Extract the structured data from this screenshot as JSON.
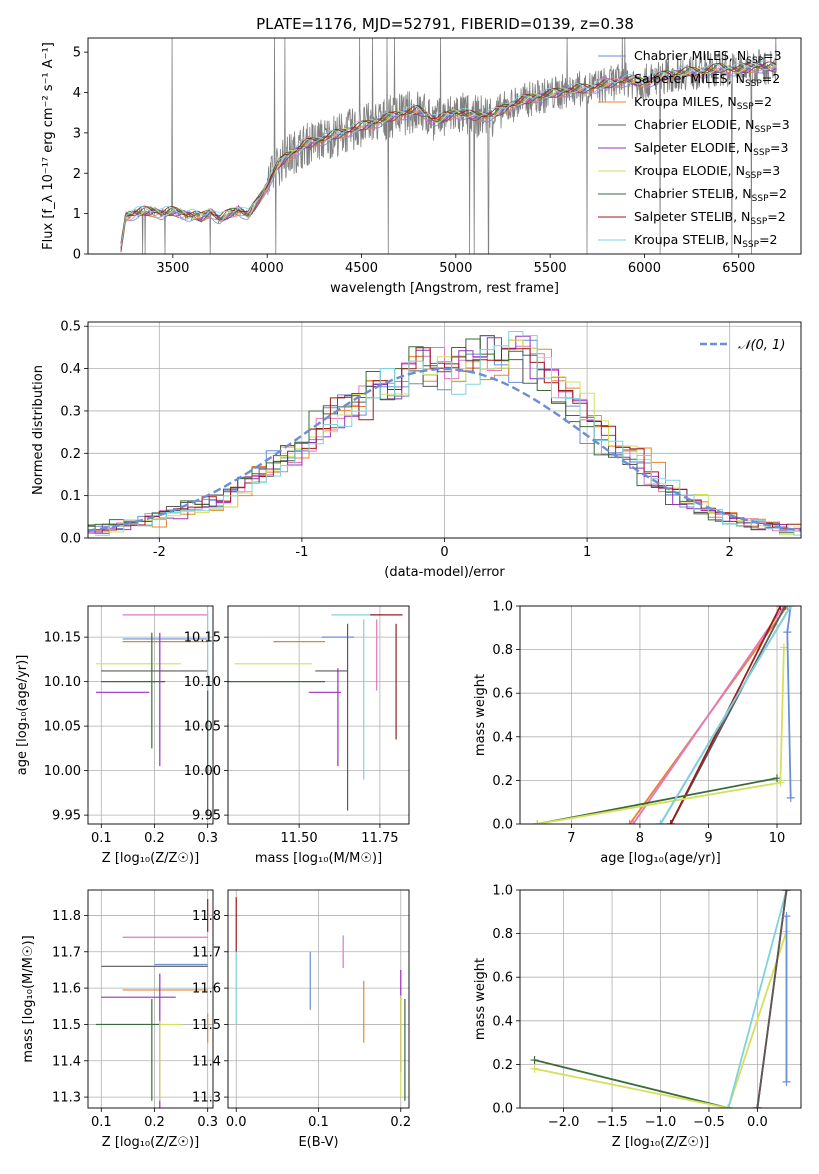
{
  "figure": {
    "title": "PLATE=1176, MJD=52791, FIBERID=0139, z=0.38"
  },
  "series_colors": {
    "Chabrier MILES": "#6a8fd6",
    "Salpeter MILES": "#e377c2",
    "Kroupa MILES": "#e8852c",
    "Chabrier ELODIE": "#5a5a5a",
    "Salpeter ELODIE": "#9b30c0",
    "Kroupa ELODIE": "#d4e05a",
    "Chabrier STELIB": "#3b6b3b",
    "Salpeter STELIB": "#9c1c1c",
    "Kroupa STELIB": "#7fd3dc",
    "data": "#808080",
    "normal": "#6a8fd6"
  },
  "chart_data": [
    {
      "id": "spectrum",
      "type": "line",
      "xlabel": "wavelength [Angstrom, rest frame]",
      "ylabel": "Flux [f_λ 10⁻¹⁷ erg cm⁻² s⁻¹ A⁻¹]",
      "xlim": [
        3050,
        6830
      ],
      "ylim": [
        0,
        5.35
      ],
      "xticks": [
        3500,
        4000,
        4500,
        5000,
        5500,
        6000,
        6500
      ],
      "yticks": [
        0,
        1,
        2,
        3,
        4,
        5
      ],
      "grid": false,
      "legend_position": "top-right",
      "legend": [
        {
          "name": "Chabrier MILES",
          "nssp": "3"
        },
        {
          "name": "Salpeter MILES",
          "nssp": "2"
        },
        {
          "name": "Kroupa MILES",
          "nssp": "2"
        },
        {
          "name": "Chabrier ELODIE",
          "nssp": "3"
        },
        {
          "name": "Salpeter ELODIE",
          "nssp": "3"
        },
        {
          "name": "Kroupa ELODIE",
          "nssp": "3"
        },
        {
          "name": "Chabrier STELIB",
          "nssp": "2"
        },
        {
          "name": "Salpeter STELIB",
          "nssp": "2"
        },
        {
          "name": "Kroupa STELIB",
          "nssp": "2"
        }
      ],
      "continuum": {
        "x": [
          3220,
          3250,
          3300,
          3350,
          3400,
          3450,
          3500,
          3550,
          3600,
          3650,
          3700,
          3750,
          3800,
          3850,
          3900,
          3950,
          4000,
          4050,
          4100,
          4200,
          4300,
          4400,
          4500,
          4600,
          4700,
          4800,
          4900,
          5000,
          5100,
          5200,
          5300,
          5400,
          5500,
          5600,
          5700,
          5800,
          5900,
          6000,
          6100,
          6200,
          6300,
          6400,
          6500,
          6600,
          6700
        ],
        "y": [
          0,
          0.95,
          1.0,
          1.05,
          1.05,
          1.0,
          1.05,
          1.0,
          0.95,
          0.9,
          1.05,
          0.85,
          1.0,
          1.1,
          0.95,
          1.3,
          1.7,
          2.15,
          2.4,
          2.7,
          2.85,
          3.0,
          3.15,
          3.3,
          3.45,
          3.55,
          3.3,
          3.5,
          3.4,
          3.45,
          3.7,
          3.85,
          3.95,
          4.05,
          4.1,
          4.2,
          4.3,
          4.25,
          4.4,
          4.5,
          4.5,
          4.6,
          4.55,
          4.65,
          4.6
        ]
      }
    },
    {
      "id": "residuals",
      "type": "histogram",
      "xlabel": "(data-model)/error",
      "ylabel": "Normed distribution",
      "xlim": [
        -2.5,
        2.5
      ],
      "ylim": [
        0,
        0.51
      ],
      "xticks": [
        -2,
        -1,
        0,
        1,
        2
      ],
      "yticks": [
        0.0,
        0.1,
        0.2,
        0.3,
        0.4,
        0.5
      ],
      "grid": true,
      "legend_position": "top-right",
      "legend_label": "𝒩(0, 1)",
      "bin_edges": [
        -2.5,
        -2.4,
        -2.3,
        -2.2,
        -2.1,
        -2.0,
        -1.9,
        -1.8,
        -1.7,
        -1.6,
        -1.5,
        -1.4,
        -1.3,
        -1.2,
        -1.1,
        -1.0,
        -0.9,
        -0.8,
        -0.7,
        -0.6,
        -0.5,
        -0.4,
        -0.3,
        -0.2,
        -0.1,
        0.0,
        0.1,
        0.2,
        0.3,
        0.4,
        0.5,
        0.6,
        0.7,
        0.8,
        0.9,
        1.0,
        1.1,
        1.2,
        1.3,
        1.4,
        1.5,
        1.6,
        1.7,
        1.8,
        1.9,
        2.0,
        2.1,
        2.2,
        2.3,
        2.4,
        2.5
      ],
      "base_counts": [
        0.02,
        0.025,
        0.03,
        0.035,
        0.04,
        0.05,
        0.06,
        0.075,
        0.08,
        0.09,
        0.11,
        0.14,
        0.15,
        0.18,
        0.2,
        0.24,
        0.27,
        0.29,
        0.32,
        0.33,
        0.37,
        0.35,
        0.39,
        0.4,
        0.41,
        0.38,
        0.4,
        0.42,
        0.44,
        0.45,
        0.42,
        0.41,
        0.37,
        0.34,
        0.3,
        0.26,
        0.24,
        0.2,
        0.18,
        0.15,
        0.12,
        0.1,
        0.08,
        0.06,
        0.05,
        0.04,
        0.035,
        0.03,
        0.025,
        0.02
      ]
    },
    {
      "id": "age-vs-z",
      "type": "errorbar",
      "xlabel": "Z [log₁₀(Z/Z☉)]",
      "ylabel": "age  [log₁₀(age/yr)]",
      "xlim": [
        0.075,
        0.31
      ],
      "ylim": [
        9.94,
        10.185
      ],
      "xticks": [
        0.1,
        0.2,
        0.3
      ],
      "yticks": [
        9.95,
        10.0,
        10.05,
        10.1,
        10.15
      ],
      "grid": true,
      "points": [
        {
          "series": "Salpeter MILES",
          "x": 0.22,
          "xerr": 0.08,
          "y": 10.175,
          "yerr": 0.0
        },
        {
          "series": "Chabrier MILES",
          "x": 0.22,
          "xerr": 0.08,
          "y": 10.148,
          "yerr": 0.0
        },
        {
          "series": "Kroupa MILES",
          "x": 0.22,
          "xerr": 0.08,
          "y": 10.145,
          "yerr": 0.0
        },
        {
          "series": "Chabrier ELODIE",
          "x": 0.2,
          "xerr": 0.1,
          "y": 10.112,
          "yerr": 0.0
        },
        {
          "series": "Kroupa ELODIE",
          "x": 0.17,
          "xerr": 0.08,
          "y": 10.12,
          "yerr": 0.0
        },
        {
          "series": "Chabrier STELIB",
          "x": 0.16,
          "xerr": 0.06,
          "y": 10.1,
          "yerr": 0.0
        },
        {
          "series": "Salpeter ELODIE",
          "x": 0.14,
          "xerr": 0.05,
          "y": 10.088,
          "yerr": 0.0
        },
        {
          "series": "Chabrier STELIB",
          "x": 0.195,
          "xerr": 0.0,
          "y": 10.09,
          "yerr": 0.065
        },
        {
          "series": "Salpeter ELODIE",
          "x": 0.21,
          "xerr": 0.0,
          "y": 10.08,
          "yerr": 0.075
        },
        {
          "series": "Kroupa STELIB",
          "x": 0.3,
          "xerr": 0.0,
          "y": 10.085,
          "yerr": 0.095
        },
        {
          "series": "Chabrier ELODIE",
          "x": 0.3,
          "xerr": 0.0,
          "y": 10.02,
          "yerr": 0.07
        }
      ]
    },
    {
      "id": "age-vs-mass",
      "type": "errorbar",
      "xlabel": "mass [log₁₀(M/M☉)]",
      "ylabel": "",
      "xlim": [
        11.28,
        11.84
      ],
      "ylim": [
        9.94,
        10.185
      ],
      "xticks": [
        11.5,
        11.75
      ],
      "xtick_labels": [
        "11.50",
        "11.75"
      ],
      "yticks": [
        9.95,
        10.0,
        10.05,
        10.1,
        10.15
      ],
      "grid": true,
      "points": [
        {
          "series": "Kroupa STELIB",
          "x": 11.68,
          "xerr": 0.08,
          "y": 10.175,
          "yerr": 0.0
        },
        {
          "series": "Salpeter STELIB",
          "x": 11.77,
          "xerr": 0.05,
          "y": 10.175,
          "yerr": 0.0
        },
        {
          "series": "Chabrier MILES",
          "x": 11.62,
          "xerr": 0.05,
          "y": 10.15,
          "yerr": 0.0
        },
        {
          "series": "Kroupa MILES",
          "x": 11.5,
          "xerr": 0.08,
          "y": 10.145,
          "yerr": 0.0
        },
        {
          "series": "Kroupa ELODIE",
          "x": 11.42,
          "xerr": 0.12,
          "y": 10.12,
          "yerr": 0.0
        },
        {
          "series": "Chabrier ELODIE",
          "x": 11.6,
          "xerr": 0.05,
          "y": 10.112,
          "yerr": 0.0
        },
        {
          "series": "Chabrier STELIB",
          "x": 11.43,
          "xerr": 0.15,
          "y": 10.1,
          "yerr": 0.0
        },
        {
          "series": "Salpeter ELODIE",
          "x": 11.58,
          "xerr": 0.05,
          "y": 10.088,
          "yerr": 0.0
        },
        {
          "series": "Salpeter STELIB",
          "x": 11.8,
          "xerr": 0.0,
          "y": 10.1,
          "yerr": 0.065
        },
        {
          "series": "Kroupa STELIB",
          "x": 11.7,
          "xerr": 0.0,
          "y": 10.08,
          "yerr": 0.09
        },
        {
          "series": "Chabrier ELODIE",
          "x": 11.65,
          "xerr": 0.0,
          "y": 10.06,
          "yerr": 0.105
        },
        {
          "series": "Salpeter ELODIE",
          "x": 11.62,
          "xerr": 0.0,
          "y": 10.06,
          "yerr": 0.055
        },
        {
          "series": "Salpeter MILES",
          "x": 11.74,
          "xerr": 0.0,
          "y": 10.13,
          "yerr": 0.04
        }
      ]
    },
    {
      "id": "weight-vs-age",
      "type": "line",
      "xlabel": "age  [log₁₀(age/yr)]",
      "ylabel": "mass weight",
      "xlim": [
        6.25,
        10.35
      ],
      "ylim": [
        0,
        1
      ],
      "xticks": [
        7,
        8,
        9,
        10
      ],
      "yticks": [
        0.0,
        0.2,
        0.4,
        0.6,
        0.8,
        1.0
      ],
      "grid": true,
      "series": [
        {
          "name": "Kroupa MILES",
          "x": [
            7.85,
            10.15
          ],
          "y": [
            0.0,
            1.0
          ]
        },
        {
          "name": "Salpeter MILES",
          "x": [
            7.9,
            10.1
          ],
          "y": [
            0.0,
            1.0
          ]
        },
        {
          "name": "Chabrier ELODIE",
          "x": [
            8.45,
            10.12
          ],
          "y": [
            0.0,
            1.0
          ]
        },
        {
          "name": "Salpeter STELIB",
          "x": [
            8.45,
            10.05
          ],
          "y": [
            0.0,
            1.0
          ]
        },
        {
          "name": "Chabrier STELIB",
          "x": [
            6.5,
            10.0
          ],
          "y": [
            0.0,
            0.21
          ]
        },
        {
          "name": "Kroupa ELODIE",
          "x": [
            6.5,
            10.05,
            10.1
          ],
          "y": [
            0.0,
            0.19,
            0.81
          ]
        },
        {
          "name": "Chabrier MILES",
          "x": [
            8.3,
            10.2,
            10.15,
            10.2
          ],
          "y": [
            0.0,
            1.0,
            0.88,
            0.12
          ]
        },
        {
          "name": "Kroupa STELIB",
          "x": [
            8.3,
            10.2
          ],
          "y": [
            0.0,
            1.0
          ]
        }
      ]
    },
    {
      "id": "mass-vs-z",
      "type": "errorbar",
      "xlabel": "Z [log₁₀(Z/Z☉)]",
      "ylabel": "mass [log₁₀(M/M☉)]",
      "xlim": [
        0.075,
        0.31
      ],
      "ylim": [
        11.27,
        11.87
      ],
      "xticks": [
        0.1,
        0.2,
        0.3
      ],
      "yticks": [
        11.3,
        11.4,
        11.5,
        11.6,
        11.7,
        11.8
      ],
      "grid": true,
      "points": [
        {
          "series": "Salpeter MILES",
          "x": 0.22,
          "xerr": 0.08,
          "y": 11.74,
          "yerr": 0.0
        },
        {
          "series": "Chabrier MILES",
          "x": 0.25,
          "xerr": 0.05,
          "y": 11.665,
          "yerr": 0.0
        },
        {
          "series": "Chabrier ELODIE",
          "x": 0.2,
          "xerr": 0.1,
          "y": 11.66,
          "yerr": 0.0
        },
        {
          "series": "Kroupa MILES",
          "x": 0.22,
          "xerr": 0.08,
          "y": 11.595,
          "yerr": 0.0
        },
        {
          "series": "Salpeter ELODIE",
          "x": 0.17,
          "xerr": 0.07,
          "y": 11.575,
          "yerr": 0.0
        },
        {
          "series": "Kroupa ELODIE",
          "x": 0.17,
          "xerr": 0.08,
          "y": 11.5,
          "yerr": 0.0
        },
        {
          "series": "Chabrier STELIB",
          "x": 0.15,
          "xerr": 0.06,
          "y": 11.5,
          "yerr": 0.0
        },
        {
          "series": "Salpeter STELIB",
          "x": 0.3,
          "xerr": 0.0,
          "y": 11.8,
          "yerr": 0.045
        },
        {
          "series": "Chabrier STELIB",
          "x": 0.195,
          "xerr": 0.0,
          "y": 11.43,
          "yerr": 0.14
        },
        {
          "series": "Salpeter ELODIE",
          "x": 0.21,
          "xerr": 0.0,
          "y": 11.44,
          "yerr": 0.2
        },
        {
          "series": "Kroupa ELODIE",
          "x": 0.21,
          "xerr": 0.0,
          "y": 11.4,
          "yerr": 0.11
        },
        {
          "series": "Kroupa MILES",
          "x": 0.3,
          "xerr": 0.0,
          "y": 11.49,
          "yerr": 0.04
        }
      ]
    },
    {
      "id": "mass-vs-ebv",
      "type": "errorbar",
      "xlabel": "E(B-V)",
      "ylabel": "",
      "xlim": [
        -0.01,
        0.21
      ],
      "ylim": [
        11.27,
        11.87
      ],
      "xticks": [
        0.0,
        0.1,
        0.2
      ],
      "yticks": [
        11.3,
        11.4,
        11.5,
        11.6,
        11.7,
        11.8
      ],
      "grid": true,
      "points": [
        {
          "series": "Salpeter STELIB",
          "x": 0.0,
          "y": 11.775,
          "yerr": 0.075
        },
        {
          "series": "Kroupa STELIB",
          "x": 0.0,
          "y": 11.6,
          "yerr": 0.1
        },
        {
          "series": "Chabrier MILES",
          "x": 0.09,
          "y": 11.62,
          "yerr": 0.08
        },
        {
          "series": "Salpeter MILES",
          "x": 0.13,
          "y": 11.7,
          "yerr": 0.045
        },
        {
          "series": "Kroupa MILES",
          "x": 0.155,
          "y": 11.535,
          "yerr": 0.085
        },
        {
          "series": "Salpeter ELODIE",
          "x": 0.2,
          "y": 11.51,
          "yerr": 0.14
        },
        {
          "series": "Kroupa ELODIE",
          "x": 0.2,
          "y": 11.44,
          "yerr": 0.14
        },
        {
          "series": "Chabrier STELIB",
          "x": 0.205,
          "y": 11.43,
          "yerr": 0.14
        }
      ]
    },
    {
      "id": "weight-vs-z",
      "type": "line",
      "xlabel": "Z [log₁₀(Z/Z☉)]",
      "ylabel": "mass weight",
      "xlim": [
        -2.45,
        0.45
      ],
      "ylim": [
        0,
        1
      ],
      "xticks": [
        -2.0,
        -1.5,
        -1.0,
        -0.5,
        0.0
      ],
      "yticks": [
        0.0,
        0.2,
        0.4,
        0.6,
        0.8,
        1.0
      ],
      "grid": true,
      "series": [
        {
          "name": "Chabrier STELIB",
          "x": [
            -2.3,
            -0.3
          ],
          "y": [
            0.22,
            0.0
          ]
        },
        {
          "name": "Kroupa ELODIE",
          "x": [
            -2.3,
            -0.3,
            0.3
          ],
          "y": [
            0.18,
            0.0,
            0.81
          ]
        },
        {
          "name": "Kroupa STELIB",
          "x": [
            -0.3,
            0.3
          ],
          "y": [
            0.0,
            1.0
          ]
        },
        {
          "name": "Salpeter STELIB",
          "x": [
            0.0,
            0.3
          ],
          "y": [
            0.0,
            1.0
          ]
        },
        {
          "name": "Chabrier ELODIE",
          "x": [
            0.0,
            0.3
          ],
          "y": [
            0.0,
            1.0
          ]
        },
        {
          "name": "Chabrier MILES",
          "x": [
            0.3,
            0.3
          ],
          "y": [
            0.88,
            0.12
          ]
        }
      ]
    }
  ]
}
